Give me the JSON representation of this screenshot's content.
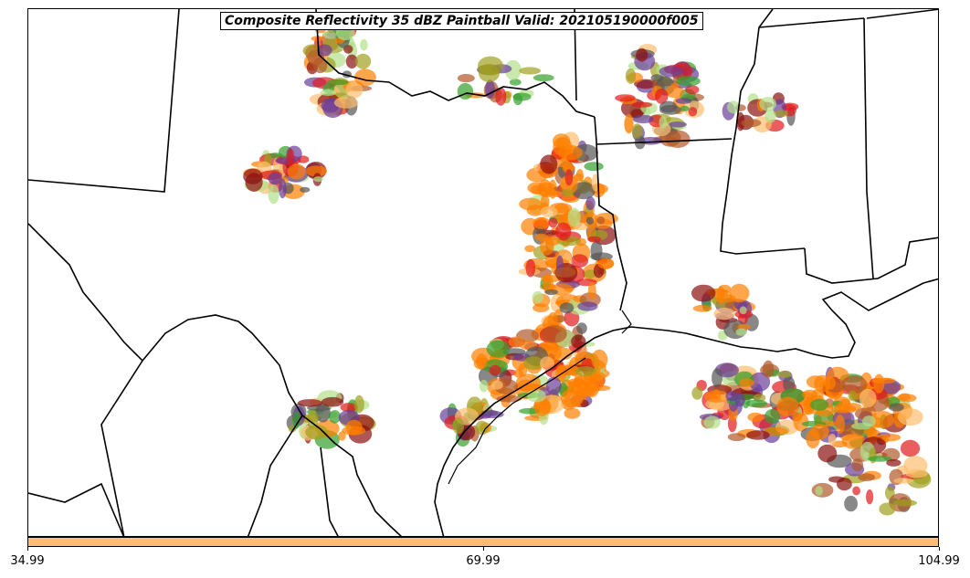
{
  "title": "Composite Reflectivity 35 dBZ Paintball Valid: 202105190000f005",
  "colorbar": {
    "color": "#fdbf6f",
    "ticks": [
      {
        "label": "34.99",
        "value": 34.99
      },
      {
        "label": "69.99",
        "value": 69.99
      },
      {
        "label": "104.99",
        "value": 104.99
      }
    ],
    "range": [
      34.99,
      104.99
    ]
  },
  "member_colors": [
    "#e31a1c",
    "#33a02c",
    "#ff7f00",
    "#b2df8a",
    "#fdbf6f",
    "#6a3d9a",
    "#b15928",
    "#555555",
    "#a0a020",
    "#8c1010"
  ],
  "features": [
    "state-borders",
    "coastline",
    "storm-blobs"
  ]
}
